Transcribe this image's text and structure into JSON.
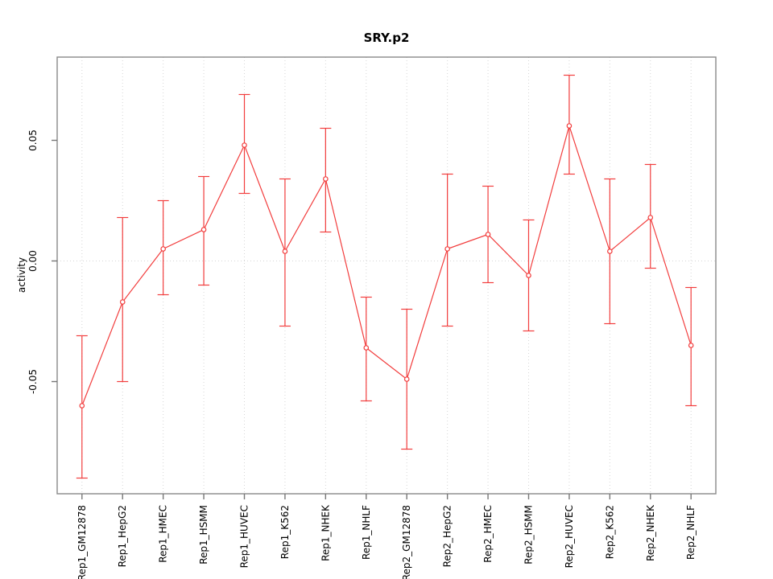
{
  "chart_data": {
    "type": "line",
    "title": "SRY.p2",
    "xlabel": "",
    "ylabel": "activity",
    "categories": [
      "Rep1_GM12878",
      "Rep1_HepG2",
      "Rep1_HMEC",
      "Rep1_HSMM",
      "Rep1_HUVEC",
      "Rep1_K562",
      "Rep1_NHEK",
      "Rep1_NHLF",
      "Rep2_GM12878",
      "Rep2_HepG2",
      "Rep2_HMEC",
      "Rep2_HSMM",
      "Rep2_HUVEC",
      "Rep2_K562",
      "Rep2_NHEK",
      "Rep2_NHLF"
    ],
    "series": [
      {
        "name": "activity",
        "values": [
          -0.06,
          -0.017,
          0.005,
          0.013,
          0.048,
          0.004,
          0.034,
          -0.036,
          -0.049,
          0.005,
          0.011,
          -0.006,
          0.056,
          0.004,
          0.018,
          -0.035
        ],
        "err_lo": [
          -0.09,
          -0.05,
          -0.014,
          -0.01,
          0.028,
          -0.027,
          0.012,
          -0.058,
          -0.078,
          -0.027,
          -0.009,
          -0.029,
          0.036,
          -0.026,
          -0.003,
          -0.06
        ],
        "err_hi": [
          -0.031,
          0.018,
          0.025,
          0.035,
          0.069,
          0.034,
          0.055,
          -0.015,
          -0.02,
          0.036,
          0.031,
          0.017,
          0.077,
          0.034,
          0.04,
          -0.011
        ]
      }
    ],
    "yticks": [
      {
        "value": -0.05,
        "label": "-0.05"
      },
      {
        "value": 0.0,
        "label": "0.00"
      },
      {
        "value": 0.05,
        "label": "0.05"
      }
    ],
    "ylim": [
      -0.0965,
      0.0845
    ],
    "zero_line": 0,
    "grid": "vertical-dotted-at-each-category, dotted-horizontal-at-zero",
    "legend_position": "none",
    "marker": "open-circle",
    "colors": {
      "series": "#f23d3d",
      "grid": "#d6d6d6",
      "frame": "#888888",
      "tick": "#777777",
      "text": "#000000",
      "background": "#ffffff"
    }
  }
}
